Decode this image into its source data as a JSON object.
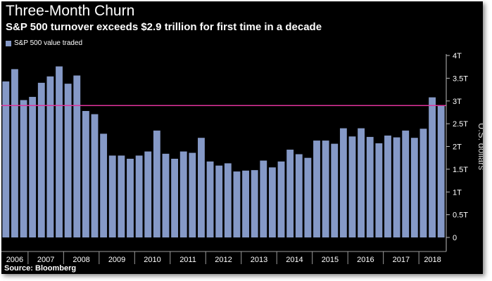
{
  "chart_data": {
    "type": "bar",
    "title": "Three-Month Churn",
    "subtitle": "S&P 500 turnover exceeds $2.9 trillion for first time in a decade",
    "source": "Source: Bloomberg",
    "ylabel": "U.S. dollars",
    "ylim": [
      0,
      4
    ],
    "yticks": [
      0,
      0.5,
      1,
      1.5,
      2,
      2.5,
      3,
      3.5,
      4
    ],
    "ytick_labels": [
      "0",
      "0.5T",
      "1T",
      "1.5T",
      "2T",
      "2.5T",
      "3T",
      "3.5T",
      "4T"
    ],
    "x_year_labels": [
      "2006",
      "2007",
      "2008",
      "2009",
      "2010",
      "2011",
      "2012",
      "2013",
      "2014",
      "2015",
      "2016",
      "2017",
      "2018"
    ],
    "series": [
      {
        "name": "S&P 500 value traded",
        "color": "#8599c7",
        "values": [
          3.43,
          3.7,
          3.02,
          3.09,
          3.4,
          3.54,
          3.76,
          3.38,
          3.56,
          2.78,
          2.71,
          2.28,
          1.8,
          1.8,
          1.73,
          1.8,
          1.89,
          2.35,
          1.84,
          1.73,
          1.89,
          1.86,
          2.19,
          1.67,
          1.58,
          1.63,
          1.45,
          1.47,
          1.48,
          1.69,
          1.54,
          1.67,
          1.93,
          1.83,
          1.75,
          2.13,
          2.13,
          2.06,
          2.4,
          2.22,
          2.4,
          2.21,
          2.07,
          2.24,
          2.2,
          2.35,
          2.19,
          2.39,
          3.08,
          2.9
        ]
      }
    ],
    "reference_line": {
      "value": 2.9,
      "color": "#e0339b"
    },
    "grid": false,
    "legend_position": "top-left"
  }
}
